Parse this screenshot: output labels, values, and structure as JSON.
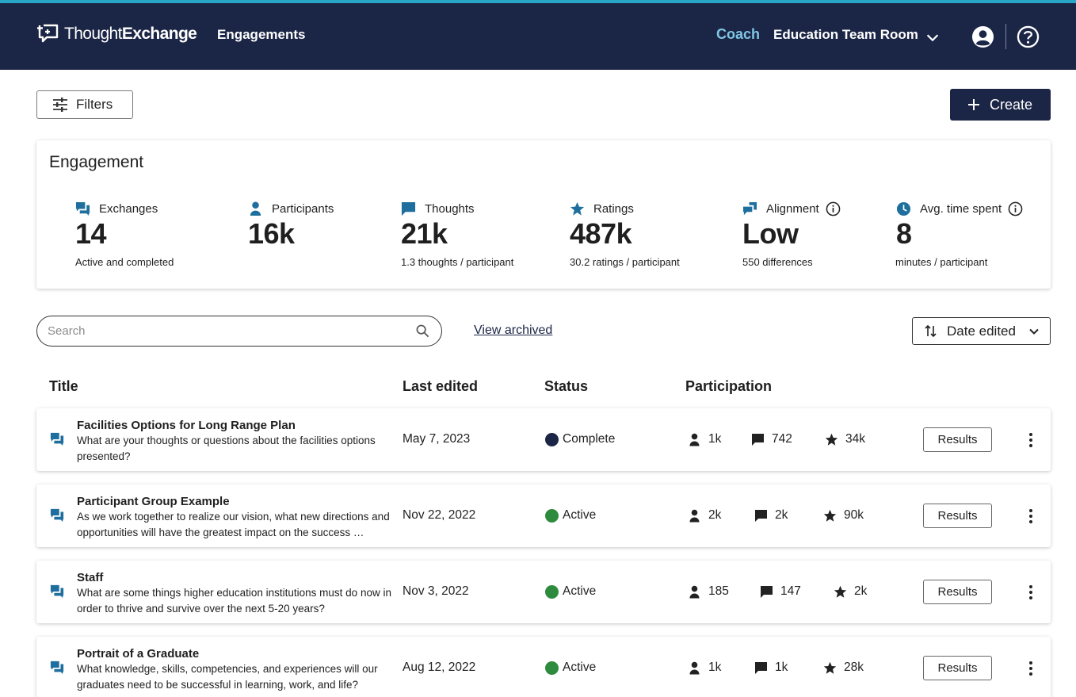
{
  "header": {
    "logo_prefix": "Thought",
    "logo_suffix": "Exchange",
    "nav_engagements": "Engagements",
    "coach": "Coach",
    "room": "Education Team Room"
  },
  "toolbar": {
    "filters_label": "Filters",
    "create_label": "Create"
  },
  "engagement": {
    "title": "Engagement",
    "metrics": [
      {
        "label": "Exchanges",
        "value": "14",
        "sub": "Active and completed"
      },
      {
        "label": "Participants",
        "value": "16k",
        "sub": ""
      },
      {
        "label": "Thoughts",
        "value": "21k",
        "sub": "1.3 thoughts / participant"
      },
      {
        "label": "Ratings",
        "value": "487k",
        "sub": "30.2 ratings / participant"
      },
      {
        "label": "Alignment",
        "value": "Low",
        "sub": "550 differences"
      },
      {
        "label": "Avg. time spent",
        "value": "8",
        "sub": "minutes / participant"
      }
    ]
  },
  "search": {
    "placeholder": "Search",
    "view_archived": "View archived",
    "sort_label": "Date edited"
  },
  "table": {
    "headers": {
      "title": "Title",
      "last_edited": "Last edited",
      "status": "Status",
      "participation": "Participation"
    },
    "results_label": "Results",
    "rows": [
      {
        "title": "Facilities Options for Long Range Plan",
        "description": "What are your thoughts or questions about the facilities options presented?",
        "date": "May 7, 2023",
        "status": "Complete",
        "participants": "1k",
        "thoughts": "742",
        "ratings": "34k"
      },
      {
        "title": "Participant Group Example",
        "description": "As we work together to realize our vision, what new directions and opportunities will have the greatest impact on the success …",
        "date": "Nov 22, 2022",
        "status": "Active",
        "participants": "2k",
        "thoughts": "2k",
        "ratings": "90k"
      },
      {
        "title": "Staff",
        "description": "What are some things higher education institutions must do now in order to thrive and survive over the next 5-20 years?",
        "date": "Nov 3, 2022",
        "status": "Active",
        "participants": "185",
        "thoughts": "147",
        "ratings": "2k"
      },
      {
        "title": "Portrait of a Graduate",
        "description": "What knowledge, skills, competencies, and experiences will our graduates need to be successful in learning, work, and life?",
        "date": "Aug 12, 2022",
        "status": "Active",
        "participants": "1k",
        "thoughts": "1k",
        "ratings": "28k"
      }
    ]
  },
  "colors": {
    "navy": "#1b2545",
    "accent": "#29a6c6",
    "coach": "#7fc6e3",
    "metric_icon_blue": "#1f6f9e",
    "status_complete": "#1b2545",
    "status_active": "#2e8b3e"
  },
  "icons": {
    "logo": "thought-bubble-icon",
    "filters": "sliders-icon",
    "create": "plus-icon",
    "sort": "swap-vertical-icon",
    "search": "search-icon",
    "row": "chat-bubbles-icon",
    "participants": "person-icon",
    "thoughts": "speech-bubble-icon",
    "ratings": "star-icon",
    "more": "kebab-icon"
  }
}
